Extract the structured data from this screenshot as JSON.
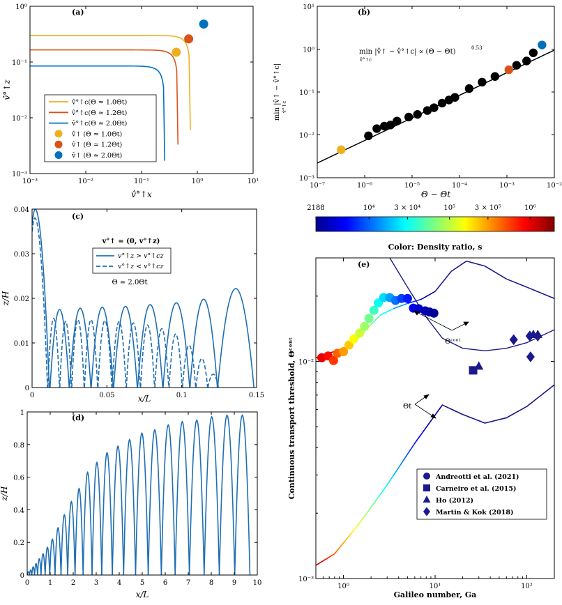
{
  "colors": {
    "orange": "#EDB120",
    "red": "#D95319",
    "blue": "#0072BD",
    "mblue": "#1f6fb4",
    "navy": "#1a1a8c",
    "axis": "#000000"
  },
  "chart_data": [
    {
      "id": "a",
      "type": "line",
      "panel_label": "(a)",
      "xlabel": "v̂°↑x",
      "ylabel": "v̂°↑z",
      "xscale": "log",
      "yscale": "log",
      "xlim": [
        0.001,
        10
      ],
      "ylim": [
        0.001,
        1
      ],
      "xticks": [
        "10⁻³",
        "10⁻²",
        "10⁻¹",
        "10⁰",
        "10¹"
      ],
      "yticks": [
        "10⁻³",
        "10⁻²",
        "10⁻¹",
        "10⁰"
      ],
      "legend_position": "lower-left",
      "series": [
        {
          "name": "v̂°↑c(Θ ≃ 1.0Θt)",
          "kind": "curve",
          "color": "#EDB120",
          "vz_plateau": 0.3,
          "vx_cutoff": 0.75
        },
        {
          "name": "v̂°↑c(Θ ≃ 1.2Θt)",
          "kind": "curve",
          "color": "#D95319",
          "vz_plateau": 0.165,
          "vx_cutoff": 0.45
        },
        {
          "name": "v̂°↑c(Θ ≃ 2.0Θt)",
          "kind": "curve",
          "color": "#0072BD",
          "vz_plateau": 0.085,
          "vx_cutoff": 0.26
        },
        {
          "name": "v̂↑ (Θ ≃ 1.0Θt)",
          "kind": "point",
          "color": "#EDB120",
          "x": 0.42,
          "y": 0.15
        },
        {
          "name": "v̂↑ (Θ ≃ 1.2Θt)",
          "kind": "point",
          "color": "#D95319",
          "x": 0.7,
          "y": 0.26
        },
        {
          "name": "v̂↑ (Θ ≃ 2.0Θt)",
          "kind": "point",
          "color": "#0072BD",
          "x": 1.3,
          "y": 0.48
        }
      ]
    },
    {
      "id": "b",
      "type": "scatter",
      "panel_label": "(b)",
      "xlabel": "Θ − Θt",
      "ylabel": "min |v̂↑ − v̂°↑c|",
      "ylabel_sub": "v̂°↑c",
      "xscale": "log",
      "yscale": "log",
      "xlim": [
        1e-07,
        0.01
      ],
      "ylim": [
        0.001,
        10
      ],
      "xticks": [
        "10⁻⁷",
        "10⁻⁶",
        "10⁻⁵",
        "10⁻⁴",
        "10⁻³",
        "10⁻²"
      ],
      "yticks": [
        "10⁻³",
        "10⁻²",
        "10⁻¹",
        "10⁰",
        "10¹"
      ],
      "annotation_main": "min |v̂↑ − v̂°↑c| ∝ (Θ − Θt)",
      "annotation_exp": "0.53",
      "annotation_sub": "v̂°↑c",
      "fit": {
        "exponent": 0.53,
        "x": [
          1e-07,
          0.01
        ],
        "y": [
          0.0022,
          0.95
        ]
      },
      "x": [
        3.2e-07,
        1.2e-06,
        1.8e-06,
        2.6e-06,
        3.5e-06,
        4.8e-06,
        8.5e-06,
        1.3e-05,
        2.1e-05,
        2.9e-05,
        4.3e-05,
        6e-05,
        8e-05,
        0.00016,
        0.0003,
        0.00056,
        0.0011,
        0.0016,
        0.0026,
        0.0036,
        0.0055
      ],
      "y": [
        0.0045,
        0.0095,
        0.014,
        0.016,
        0.017,
        0.021,
        0.026,
        0.03,
        0.037,
        0.043,
        0.055,
        0.065,
        0.075,
        0.12,
        0.17,
        0.23,
        0.33,
        0.42,
        0.53,
        0.82,
        1.25
      ],
      "point_colors": [
        "#EDB120",
        "#000000",
        "#000000",
        "#000000",
        "#000000",
        "#000000",
        "#000000",
        "#000000",
        "#000000",
        "#000000",
        "#000000",
        "#000000",
        "#000000",
        "#000000",
        "#000000",
        "#000000",
        "#D95319",
        "#000000",
        "#000000",
        "#000000",
        "#0072BD"
      ]
    },
    {
      "id": "c",
      "type": "line",
      "panel_label": "(c)",
      "xlabel": "x/L",
      "ylabel": "z/H",
      "xlim": [
        0,
        0.15
      ],
      "ylim": [
        0,
        0.04
      ],
      "xticks": [
        "0",
        "0.05",
        "0.1",
        "0.15"
      ],
      "yticks": [
        "0",
        "0.01",
        "0.02",
        "0.03",
        "0.04"
      ],
      "ann_v": "v°↑ = (0, v°↑z)",
      "ann_theta": "Θ ≃ 2.0Θt",
      "series": [
        {
          "name": "v°↑z > v°↑cz",
          "style": "solid",
          "launch_height": 0.04,
          "hop_starts": [
            0,
            0.012,
            0.025,
            0.0395,
            0.0545,
            0.0705,
            0.0875,
            0.1055,
            0.124
          ],
          "hop_ends": [
            0.0115,
            0.0248,
            0.0393,
            0.0543,
            0.0703,
            0.0873,
            0.1053,
            0.1238,
            0.1482
          ],
          "hop_peaks": [
            0.04,
            0.0175,
            0.0178,
            0.018,
            0.0182,
            0.0186,
            0.019,
            0.0198,
            0.0222
          ]
        },
        {
          "name": "v°↑z < v°↑cz",
          "style": "dashed",
          "launch_height": 0.038,
          "hop_starts": [
            0,
            0.0105,
            0.0185,
            0.0265,
            0.035,
            0.044,
            0.0535,
            0.063,
            0.0725,
            0.082,
            0.0915,
            0.1005,
            0.1095,
            0.1175
          ],
          "hop_ends": [
            0.0103,
            0.0183,
            0.0263,
            0.0348,
            0.0438,
            0.0533,
            0.0628,
            0.0723,
            0.0818,
            0.0913,
            0.1003,
            0.1093,
            0.1173,
            0.1245
          ],
          "hop_peaks": [
            0.038,
            0.0155,
            0.0148,
            0.0152,
            0.0152,
            0.015,
            0.0148,
            0.0145,
            0.014,
            0.0132,
            0.012,
            0.0095,
            0.0065,
            0.003
          ]
        }
      ]
    },
    {
      "id": "d",
      "type": "line",
      "panel_label": "(d)",
      "xlabel": "x/L",
      "ylabel": "z/H",
      "xlim": [
        0,
        10
      ],
      "ylim": [
        0,
        1
      ],
      "xticks": [
        "0",
        "1",
        "2",
        "3",
        "4",
        "5",
        "6",
        "7",
        "8",
        "9",
        "10"
      ],
      "yticks": [
        "0",
        "0.2",
        "0.4",
        "0.6",
        "0.8",
        "1"
      ],
      "hop_starts": [
        0,
        0.1,
        0.2,
        0.32,
        0.45,
        0.6,
        0.78,
        0.98,
        1.21,
        1.47,
        1.76,
        2.08,
        2.43,
        2.82,
        3.24,
        3.7,
        4.19,
        4.71,
        5.26,
        5.83,
        6.43,
        7.05,
        7.69,
        8.35,
        9.02
      ],
      "hop_ends": [
        0.1,
        0.2,
        0.32,
        0.45,
        0.6,
        0.78,
        0.98,
        1.21,
        1.47,
        1.76,
        2.08,
        2.43,
        2.82,
        3.24,
        3.7,
        4.19,
        4.71,
        5.26,
        5.83,
        6.43,
        7.05,
        7.69,
        8.35,
        9.02,
        9.68
      ],
      "hop_peaks": [
        0.02,
        0.03,
        0.05,
        0.07,
        0.1,
        0.13,
        0.17,
        0.22,
        0.29,
        0.37,
        0.45,
        0.53,
        0.63,
        0.69,
        0.75,
        0.79,
        0.83,
        0.87,
        0.89,
        0.92,
        0.94,
        0.95,
        0.97,
        0.98,
        0.98
      ]
    },
    {
      "id": "e",
      "type": "scatter",
      "panel_label": "(e)",
      "title": "Color: Density ratio, s",
      "xlabel": "Galileo number, Ga",
      "ylabel": "Continuous transport threshold, Θᶜᵒⁿᵗ",
      "xscale": "log",
      "yscale": "log",
      "xlim": [
        0.5,
        200
      ],
      "ylim": [
        0.001,
        0.03
      ],
      "xticks": [
        "10⁰",
        "10¹",
        "10²"
      ],
      "yticks": [
        "10⁻³",
        "10⁻²"
      ],
      "colorbar": {
        "min": 2188,
        "max": 2000000,
        "ticks": [
          2188,
          10000,
          30000,
          100000,
          300000,
          1000000
        ],
        "tick_labels": [
          "2188",
          "10⁴",
          "3 × 10⁴",
          "10⁵",
          "3 × 10⁵",
          "10⁶"
        ]
      },
      "annot_cont": "Θᶜᵒⁿᵗ",
      "annot_t": "Θt",
      "theta_t_curve": {
        "Ga": [
          0.5,
          0.8,
          1.5,
          3,
          6,
          12,
          20,
          35,
          60,
          100,
          200
        ],
        "theta": [
          0.00115,
          0.0013,
          0.0018,
          0.0027,
          0.0042,
          0.0063,
          0.0057,
          0.0052,
          0.0055,
          0.0062,
          0.0078
        ]
      },
      "theta_t_upper": {
        "Ga": [
          3.2,
          5,
          8,
          12,
          20,
          35,
          60,
          100,
          200
        ],
        "theta": [
          0.03,
          0.022,
          0.016,
          0.0128,
          0.0115,
          0.0112,
          0.0115,
          0.0122,
          0.014
        ]
      },
      "theta_cont_line": {
        "Ga": [
          0.5,
          1,
          1.5,
          2,
          2.5,
          3.5,
          5,
          7,
          10,
          15,
          22,
          35,
          60,
          100,
          200
        ],
        "theta": [
          0.0104,
          0.0115,
          0.013,
          0.0148,
          0.0163,
          0.0175,
          0.0185,
          0.0193,
          0.021,
          0.026,
          0.029,
          0.0275,
          0.024,
          0.022,
          0.0195
        ]
      },
      "cont_points": {
        "Ga": [
          0.58,
          0.68,
          0.78,
          0.86,
          1.0,
          1.15,
          1.3,
          1.5,
          1.7,
          1.9,
          2.15,
          2.4,
          2.75,
          3.2,
          3.7,
          4.3,
          5.0,
          5.8,
          6.6,
          7.8,
          8.7,
          9.7
        ],
        "theta": [
          0.0104,
          0.0106,
          0.0101,
          0.0109,
          0.0111,
          0.0119,
          0.0127,
          0.0135,
          0.0145,
          0.0158,
          0.0172,
          0.0186,
          0.0197,
          0.0197,
          0.0191,
          0.0195,
          0.0195,
          0.0176,
          0.0175,
          0.0171,
          0.0169,
          0.0167
        ],
        "s": [
          1000000,
          800000,
          600000,
          450000,
          300000,
          220000,
          150000,
          110000,
          80000,
          60000,
          42000,
          30000,
          22000,
          15000,
          11000,
          8000,
          6000,
          4500,
          3500,
          3000,
          2600,
          2300
        ]
      },
      "legend_position": "lower-right",
      "datasets": [
        {
          "name": "Andreotti et al. (2021)",
          "marker": "circle",
          "Ga": [],
          "theta": []
        },
        {
          "name": "Carneiro et al. (2015)",
          "marker": "square",
          "Ga": [
            26
          ],
          "theta": [
            0.0091
          ]
        },
        {
          "name": "Ho (2012)",
          "marker": "triangle",
          "Ga": [
            30
          ],
          "theta": [
            0.0095
          ]
        },
        {
          "name": "Martin & Kok (2018)",
          "marker": "diamond",
          "Ga": [
            72,
            108,
            110,
            132
          ],
          "theta": [
            0.0126,
            0.0131,
            0.0105,
            0.0131
          ]
        },
        {
          "name": "Ho (2012)",
          "marker": "triangle",
          "Ga": [
            118,
            132
          ],
          "theta": [
            0.0133,
            0.0133
          ]
        }
      ]
    }
  ]
}
